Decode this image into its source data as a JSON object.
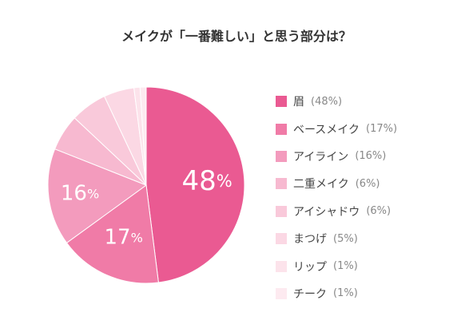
{
  "chart_data": {
    "type": "pie",
    "title": "メイクが「一番難しい」と思う部分は？",
    "slices": [
      {
        "label": "眉",
        "value": 48,
        "display": "(48%)",
        "color": "#ea5a92"
      },
      {
        "label": "ベースメイク",
        "value": 17,
        "display": "(17%)",
        "color": "#f07ba7"
      },
      {
        "label": "アイライン",
        "value": 16,
        "display": "(16%)",
        "color": "#f39bbd"
      },
      {
        "label": "二重メイク",
        "value": 6,
        "display": "(6%)",
        "color": "#f7b9d0"
      },
      {
        "label": "アイシャドウ",
        "value": 6,
        "display": "(6%)",
        "color": "#f9c9da"
      },
      {
        "label": "まつげ",
        "value": 5,
        "display": "(5%)",
        "color": "#fbd8e4"
      },
      {
        "label": "リップ",
        "value": 1,
        "display": "(1%)",
        "color": "#fce3eb"
      },
      {
        "label": "チーク",
        "value": 1,
        "display": "(1%)",
        "color": "#fdeaf0"
      }
    ],
    "slice_labels": [
      {
        "text": "48",
        "unit": "%"
      },
      {
        "text": "17",
        "unit": "%"
      },
      {
        "text": "16",
        "unit": "%"
      }
    ],
    "start": "top",
    "direction": "clockwise",
    "legend_position": "right"
  }
}
